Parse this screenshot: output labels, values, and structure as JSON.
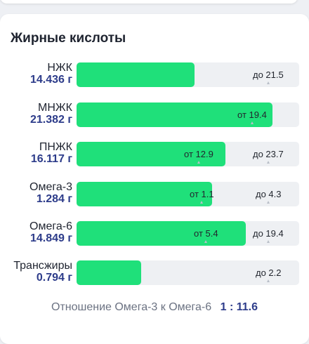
{
  "card": {
    "title": "Жирные кислоты"
  },
  "rows": [
    {
      "name": "НЖК",
      "amount": "14.436 г",
      "fill_fraction": 0.53,
      "norm_max": {
        "text": "до 21.5",
        "fraction": 0.86
      }
    },
    {
      "name": "МНЖК",
      "amount": "21.382 г",
      "fill_fraction": 0.88,
      "norm_min": {
        "text": "от 19.4",
        "fraction": 0.79
      }
    },
    {
      "name": "ПНЖК",
      "amount": "16.117 г",
      "fill_fraction": 0.67,
      "norm_min": {
        "text": "от 12.9",
        "fraction": 0.55
      },
      "norm_max": {
        "text": "до 23.7",
        "fraction": 0.86
      }
    },
    {
      "name": "Омега-3",
      "amount": "1.284 г",
      "fill_fraction": 0.61,
      "norm_min": {
        "text": "от 1.1",
        "fraction": 0.56
      },
      "norm_max": {
        "text": "до 4.3",
        "fraction": 0.86
      }
    },
    {
      "name": "Омега-6",
      "amount": "14.849 г",
      "fill_fraction": 0.76,
      "norm_min": {
        "text": "от 5.4",
        "fraction": 0.58
      },
      "norm_max": {
        "text": "до 19.4",
        "fraction": 0.86
      }
    },
    {
      "name": "Трансжиры",
      "amount": "0.794 г",
      "fill_fraction": 0.29,
      "norm_max": {
        "text": "до 2.2",
        "fraction": 0.86
      }
    }
  ],
  "ratio": {
    "label": "Отношение Омега-3 к Омега-6",
    "value": "1 : 11.6"
  },
  "colors": {
    "bar_fill": "#1fe07a",
    "bar_track": "#eef0f3",
    "amount_text": "#2d3c8a",
    "page_background": "#eef0f4"
  }
}
